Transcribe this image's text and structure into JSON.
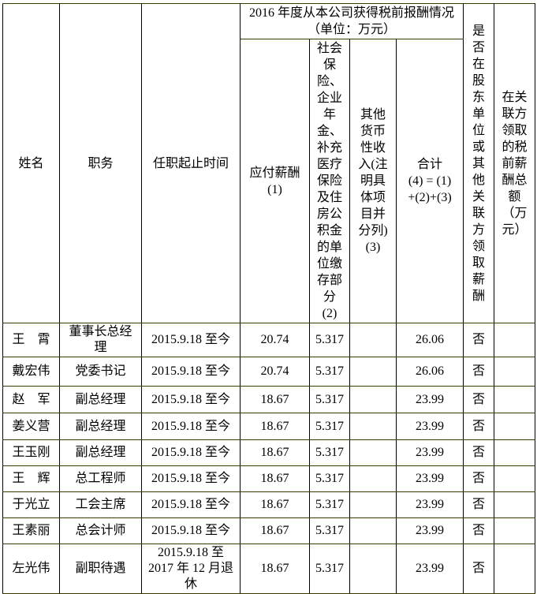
{
  "header": {
    "name": "姓名",
    "position": "职务",
    "term": "任职起止时间",
    "compensation_group": "2016 年度从本公司获得税前报酬情况\n（单位：万元）",
    "payable": "应付薪酬\n(1)",
    "insurance": "社会\n保险、\n企业\n年金、\n补充\n医疗\n保险\n及住\n房公\n积金\n的单\n位缴\n存部\n分\n(2)",
    "other_income": "其他\n货币\n性收\n入(注\n明具\n体项\n目并\n分列)\n(3)",
    "total": "合计\n(4) = (1)\n+(2)+(3)",
    "other_pay_flag": "是\n否\n在\n股\n东\n单\n位\n或\n其\n他\n关\n联\n方\n领\n取\n薪\n酬",
    "related_party_total": "在关\n联方\n领取\n的税\n前薪\n酬总\n额\n（万\n元）"
  },
  "rows": [
    {
      "name": "王　霄",
      "position": "董事长总经\n理",
      "term": "2015.9.18 至今",
      "payable": "20.74",
      "insurance": "5.317",
      "other": "",
      "total": "26.06",
      "flag": "否",
      "related": ""
    },
    {
      "name": "戴宏伟",
      "position": "党委书记",
      "term": "2015.9.18 至今",
      "payable": "20.74",
      "insurance": "5.317",
      "other": "",
      "total": "26.06",
      "flag": "否",
      "related": ""
    },
    {
      "name": "赵　军",
      "position": "副总经理",
      "term": "2015.9.18 至今",
      "payable": "18.67",
      "insurance": "5.317",
      "other": "",
      "total": "23.99",
      "flag": "否",
      "related": ""
    },
    {
      "name": "姜义营",
      "position": "副总经理",
      "term": "2015.9.18 至今",
      "payable": "18.67",
      "insurance": "5.317",
      "other": "",
      "total": "23.99",
      "flag": "否",
      "related": ""
    },
    {
      "name": "王玉刚",
      "position": "副总经理",
      "term": "2015.9.18 至今",
      "payable": "18.67",
      "insurance": "5.317",
      "other": "",
      "total": "23.99",
      "flag": "否",
      "related": ""
    },
    {
      "name": "王　辉",
      "position": "总工程师",
      "term": "2015.9.18 至今",
      "payable": "18.67",
      "insurance": "5.317",
      "other": "",
      "total": "23.99",
      "flag": "否",
      "related": ""
    },
    {
      "name": "于光立",
      "position": "工会主席",
      "term": "2015.9.18 至今",
      "payable": "18.67",
      "insurance": "5.317",
      "other": "",
      "total": "23.99",
      "flag": "否",
      "related": ""
    },
    {
      "name": "王素丽",
      "position": "总会计师",
      "term": "2015.9.18 至今",
      "payable": "18.67",
      "insurance": "5.317",
      "other": "",
      "total": "23.99",
      "flag": "否",
      "related": ""
    },
    {
      "name": "左光伟",
      "position": "副职待遇",
      "term": "2015.9.18 至\n2017 年 12 月退\n休",
      "payable": "18.67",
      "insurance": "5.317",
      "other": "",
      "total": "23.99",
      "flag": "否",
      "related": ""
    }
  ]
}
